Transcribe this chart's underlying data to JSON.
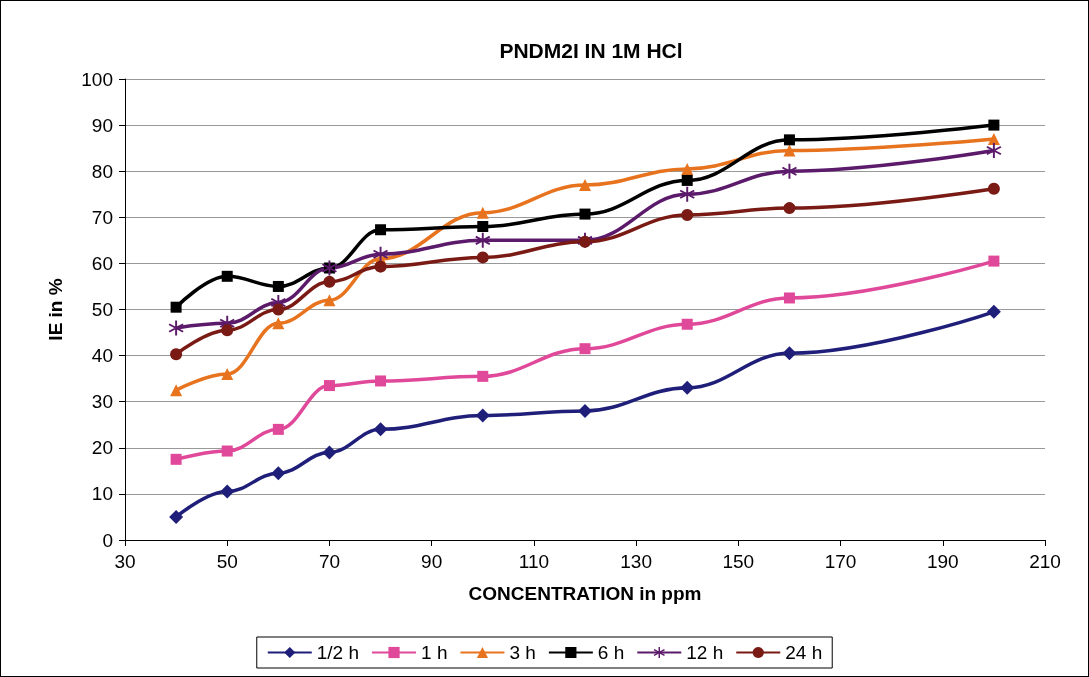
{
  "chart_data": {
    "type": "line",
    "title": "PNDM2I IN 1M HCl",
    "xlabel": "CONCENTRATION in ppm",
    "ylabel": "IE in %",
    "x": [
      40,
      50,
      60,
      70,
      80,
      100,
      120,
      140,
      160,
      200
    ],
    "xlim": [
      30,
      210
    ],
    "xticks": [
      30,
      50,
      70,
      90,
      110,
      130,
      150,
      170,
      190,
      210
    ],
    "ylim": [
      0,
      100
    ],
    "yticks": [
      0,
      10,
      20,
      30,
      40,
      50,
      60,
      70,
      80,
      90,
      100
    ],
    "grid": "y",
    "legend": "bottom",
    "series": [
      {
        "name": "1/2 h",
        "color": "#1f1f7a",
        "marker": "diamond",
        "values": [
          5,
          10.5,
          14.5,
          19,
          24,
          27,
          28,
          33,
          40.5,
          49.5
        ]
      },
      {
        "name": "1 h",
        "color": "#e0489a",
        "marker": "square",
        "values": [
          17.5,
          19.3,
          24,
          33.5,
          34.5,
          35.5,
          41.5,
          46.8,
          52.5,
          60.5
        ]
      },
      {
        "name": "3 h",
        "color": "#e8731e",
        "marker": "triangle",
        "values": [
          32.5,
          36,
          47,
          52,
          61,
          71,
          77,
          80.5,
          84.5,
          87
        ]
      },
      {
        "name": "6 h",
        "color": "#000000",
        "marker": "square",
        "values": [
          50.5,
          57.2,
          55,
          59,
          67.3,
          68,
          70.7,
          78,
          86.8,
          90
        ]
      },
      {
        "name": "12 h",
        "color": "#5c1a6b",
        "marker": "cross",
        "values": [
          46,
          47,
          51.5,
          59,
          62,
          65,
          65,
          75,
          80,
          84.5
        ]
      },
      {
        "name": "24 h",
        "color": "#7a1a14",
        "marker": "circle",
        "values": [
          40.3,
          45.5,
          50,
          56,
          59.3,
          61.3,
          64.7,
          70.5,
          72,
          76.2
        ]
      }
    ]
  }
}
